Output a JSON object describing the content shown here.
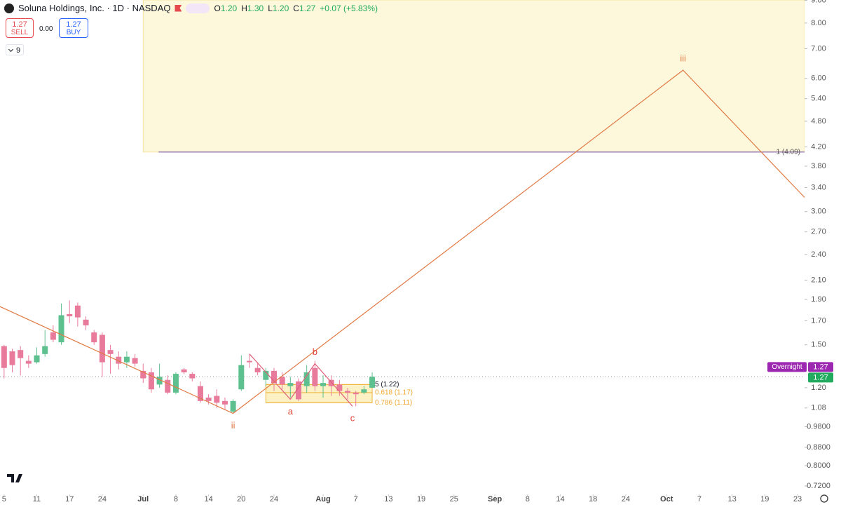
{
  "header": {
    "symbol": "Soluna Holdings, Inc. · 1D · NASDAQ",
    "ohlc": [
      {
        "key": "O",
        "value": "1.20"
      },
      {
        "key": "H",
        "value": "1.30"
      },
      {
        "key": "L",
        "value": "1.20"
      },
      {
        "key": "C",
        "value": "1.27"
      }
    ],
    "change": "+0.07 (+5.83%)",
    "sell": {
      "price": "1.27",
      "label": "SELL"
    },
    "spread": "0.00",
    "buy": {
      "price": "1.27",
      "label": "BUY"
    },
    "indicators": "9"
  },
  "chart_data": {
    "type": "candlestick",
    "log_scale": true,
    "up_color": "#5dc08e",
    "down_color": "#e87a9b",
    "x": [
      0,
      1,
      2,
      3,
      4,
      5,
      6,
      7,
      8,
      9,
      10,
      11,
      12,
      13,
      14,
      15,
      16,
      17,
      18,
      19,
      20,
      21,
      22,
      23,
      24,
      25,
      26,
      27,
      28,
      29,
      30,
      31,
      32,
      33,
      34,
      35,
      36,
      37,
      38,
      39,
      40,
      41,
      42,
      43,
      44,
      45
    ],
    "open": [
      1.49,
      1.45,
      1.46,
      1.38,
      1.37,
      1.43,
      1.6,
      1.52,
      1.76,
      1.84,
      1.71,
      1.6,
      1.58,
      1.46,
      1.41,
      1.37,
      1.4,
      1.31,
      1.3,
      1.22,
      1.25,
      1.17,
      1.32,
      1.29,
      1.21,
      1.14,
      1.15,
      1.12,
      1.06,
      1.19,
      1.38,
      1.33,
      1.25,
      1.31,
      1.27,
      1.21,
      1.24,
      1.21,
      1.33,
      1.21,
      1.25,
      1.22,
      1.18,
      1.17,
      1.17,
      1.2
    ],
    "high": [
      1.5,
      1.47,
      1.49,
      1.42,
      1.48,
      1.62,
      1.66,
      1.86,
      1.89,
      1.87,
      1.74,
      1.62,
      1.6,
      1.5,
      1.45,
      1.45,
      1.43,
      1.36,
      1.33,
      1.36,
      1.28,
      1.3,
      1.33,
      1.3,
      1.24,
      1.16,
      1.19,
      1.14,
      1.13,
      1.42,
      1.43,
      1.37,
      1.33,
      1.33,
      1.3,
      1.27,
      1.26,
      1.35,
      1.38,
      1.28,
      1.28,
      1.25,
      1.2,
      1.18,
      1.21,
      1.3
    ],
    "low": [
      1.26,
      1.3,
      1.28,
      1.33,
      1.36,
      1.41,
      1.52,
      1.5,
      1.68,
      1.65,
      1.62,
      1.5,
      1.27,
      1.29,
      1.32,
      1.33,
      1.34,
      1.23,
      1.17,
      1.2,
      1.16,
      1.16,
      1.29,
      1.24,
      1.11,
      1.1,
      1.08,
      1.07,
      1.05,
      1.18,
      1.33,
      1.28,
      1.21,
      1.18,
      1.19,
      1.14,
      1.12,
      1.17,
      1.18,
      1.14,
      1.15,
      1.15,
      1.13,
      1.09,
      1.16,
      1.2
    ],
    "close": [
      1.33,
      1.35,
      1.4,
      1.36,
      1.42,
      1.49,
      1.54,
      1.75,
      1.74,
      1.73,
      1.66,
      1.52,
      1.37,
      1.43,
      1.36,
      1.41,
      1.36,
      1.26,
      1.19,
      1.27,
      1.17,
      1.29,
      1.3,
      1.26,
      1.12,
      1.12,
      1.11,
      1.1,
      1.12,
      1.35,
      1.37,
      1.3,
      1.31,
      1.23,
      1.22,
      1.23,
      1.13,
      1.3,
      1.21,
      1.23,
      1.21,
      1.18,
      1.17,
      1.16,
      1.19,
      1.27
    ],
    "xlim": [
      -0.5,
      97.86
    ],
    "xticks": [
      {
        "value": 0,
        "label": "5"
      },
      {
        "value": 4,
        "label": "11"
      },
      {
        "value": 8,
        "label": "17"
      },
      {
        "value": 12,
        "label": "24"
      },
      {
        "value": 17,
        "label": "Jul"
      },
      {
        "value": 21,
        "label": "8"
      },
      {
        "value": 25,
        "label": "14"
      },
      {
        "value": 29,
        "label": "20"
      },
      {
        "value": 33,
        "label": "24"
      },
      {
        "value": 39,
        "label": "Aug"
      },
      {
        "value": 43,
        "label": "7"
      },
      {
        "value": 47,
        "label": "13"
      },
      {
        "value": 51,
        "label": "19"
      },
      {
        "value": 55,
        "label": "25"
      },
      {
        "value": 60,
        "label": "Sep"
      },
      {
        "value": 64,
        "label": "8"
      },
      {
        "value": 68,
        "label": "14"
      },
      {
        "value": 72,
        "label": "18"
      },
      {
        "value": 76,
        "label": "24"
      },
      {
        "value": 81,
        "label": "Oct"
      },
      {
        "value": 85,
        "label": "7"
      },
      {
        "value": 89,
        "label": "13"
      },
      {
        "value": 93,
        "label": "19"
      },
      {
        "value": 97,
        "label": "23"
      }
    ],
    "ylim": [
      0.689,
      9.02
    ],
    "yticks": [
      {
        "value": 9,
        "label": "9.00"
      },
      {
        "value": 8,
        "label": "8.00"
      },
      {
        "value": 7,
        "label": "7.00"
      },
      {
        "value": 6,
        "label": "6.00"
      },
      {
        "value": 5.4,
        "label": "5.40"
      },
      {
        "value": 4.8,
        "label": "4.80"
      },
      {
        "value": 4.2,
        "label": "4.20"
      },
      {
        "value": 3.8,
        "label": "3.80"
      },
      {
        "value": 3.4,
        "label": "3.40"
      },
      {
        "value": 3,
        "label": "3.00"
      },
      {
        "value": 2.7,
        "label": "2.70"
      },
      {
        "value": 2.4,
        "label": "2.40"
      },
      {
        "value": 2.1,
        "label": "2.10"
      },
      {
        "value": 1.9,
        "label": "1.90"
      },
      {
        "value": 1.7,
        "label": "1.70"
      },
      {
        "value": 1.5,
        "label": "1.50"
      },
      {
        "value": 1.2,
        "label": "1.20"
      },
      {
        "value": 1.08,
        "label": "1.08"
      },
      {
        "value": 0.98,
        "label": "0.9800"
      },
      {
        "value": 0.88,
        "label": "0.8800"
      },
      {
        "value": 0.8,
        "label": "0.8000"
      },
      {
        "value": 0.72,
        "label": "0.7200"
      }
    ],
    "last_price": {
      "value": 1.27,
      "label": "1.27",
      "session": "Overnight"
    },
    "target": {
      "label": "1 (4.09)",
      "value": 4.09,
      "start_x": 17,
      "color": "#9b7fb0",
      "zone_color": "#fdf8dc"
    },
    "impulse": {
      "color": "#e07a45",
      "points": [
        {
          "x": -0.5,
          "y": 1.83
        },
        {
          "x": 28,
          "y": 1.05,
          "label": "ii",
          "position": "below"
        },
        {
          "x": 83,
          "y": 6.26,
          "label": "iii",
          "position": "above"
        },
        {
          "x": 97.86,
          "y": 3.23
        }
      ]
    },
    "correction": {
      "color": "#e0607a",
      "label_color": "#e0453a",
      "points": [
        {
          "x": 30,
          "y": 1.43
        },
        {
          "x": 35,
          "y": 1.13,
          "label": "a",
          "position": "below"
        },
        {
          "x": 38,
          "y": 1.36,
          "label": "b",
          "position": "above"
        },
        {
          "x": 42.6,
          "y": 1.09,
          "label": "c",
          "position": "below"
        }
      ]
    },
    "fib": {
      "start_x": 32,
      "end_x": 45,
      "color": "#f0b43c",
      "levels": [
        {
          "label": "5 (1.22)",
          "value": 1.22,
          "color": "#131722"
        },
        {
          "label": "0.618 (1.17)",
          "value": 1.17,
          "color": "#f0a830"
        },
        {
          "label": "0.786 (1.11)",
          "value": 1.11,
          "color": "#f0a830"
        }
      ]
    }
  }
}
